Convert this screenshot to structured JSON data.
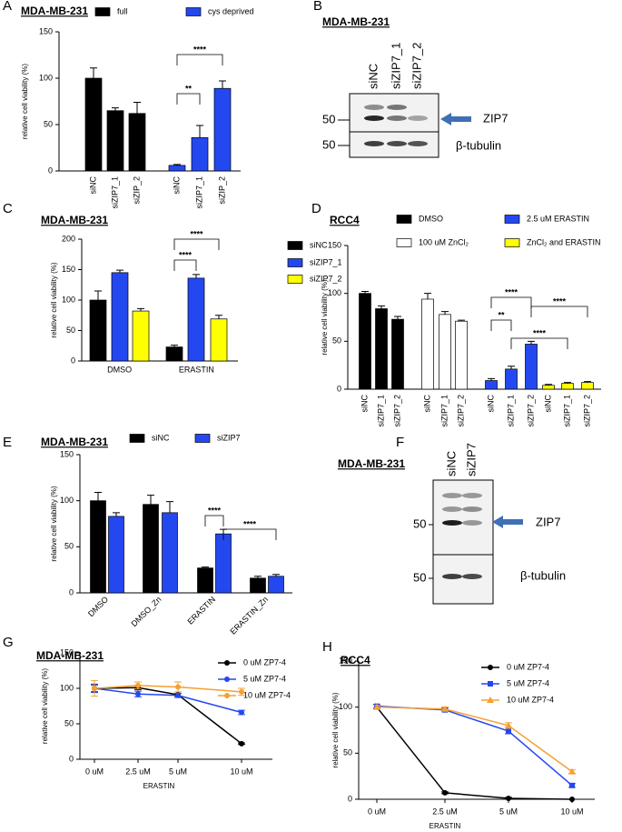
{
  "chart_data": [
    {
      "type": "bar",
      "panel": "A",
      "title": "MDA-MB-231",
      "y_label": "relative cell viability (%)",
      "categories": [
        "siNC",
        "siZIP7_1",
        "siZIP_2",
        "siNC",
        "siZIP7_1",
        "siZIP_2"
      ],
      "series": [
        {
          "name": "full",
          "color": "#000000",
          "values": [
            100,
            65,
            62,
            null,
            null,
            null
          ],
          "errors": [
            11,
            3,
            12,
            null,
            null,
            null
          ]
        },
        {
          "name": "cys deprived",
          "color": "#2448f0",
          "values": [
            null,
            null,
            null,
            6,
            36,
            89
          ],
          "errors": [
            null,
            null,
            null,
            1,
            13,
            8
          ]
        }
      ],
      "ylim": [
        0,
        150
      ],
      "yticks": [
        0,
        50,
        100,
        150
      ],
      "annotations": [
        "**",
        "****"
      ]
    },
    {
      "type": "bar",
      "panel": "C",
      "title": "MDA-MB-231",
      "y_label": "relative cell viability (%)",
      "categories": [
        "DMSO",
        "ERASTIN"
      ],
      "series": [
        {
          "name": "siNC",
          "color": "#000000",
          "values": [
            100,
            23
          ],
          "errors": [
            15,
            3
          ]
        },
        {
          "name": "siZIP7_1",
          "color": "#2448f0",
          "values": [
            145,
            136
          ],
          "errors": [
            4,
            6
          ]
        },
        {
          "name": "siZIP7_2",
          "color": "#ffff00",
          "values": [
            82,
            69
          ],
          "errors": [
            4,
            6
          ]
        }
      ],
      "ylim": [
        0,
        200
      ],
      "yticks": [
        0,
        50,
        100,
        150,
        200
      ],
      "annotations": [
        "****",
        "****"
      ]
    },
    {
      "type": "bar",
      "panel": "D",
      "title": "RCC4",
      "y_label": "relative cell viability (%)",
      "categories": [
        "siNC",
        "siZIP7_1",
        "siZIP7_2",
        "siNC",
        "siZIP7_1",
        "siZIP7_2",
        "siNC",
        "siZIP7_1",
        "siZIP7_2",
        "siNC",
        "siZIP7_1",
        "siZIP7_2"
      ],
      "series": [
        {
          "name": "DMSO",
          "color": "#000000",
          "values": [
            100,
            84,
            73,
            null,
            null,
            null,
            null,
            null,
            null,
            null,
            null,
            null
          ],
          "errors": [
            2,
            3,
            3,
            null,
            null,
            null,
            null,
            null,
            null,
            null,
            null,
            null
          ]
        },
        {
          "name": "100 uM ZnCl₂",
          "color": "#ffffff",
          "values": [
            null,
            null,
            null,
            94,
            78,
            71,
            null,
            null,
            null,
            null,
            null,
            null
          ],
          "errors": [
            null,
            null,
            null,
            6,
            3,
            1,
            null,
            null,
            null,
            null,
            null,
            null
          ]
        },
        {
          "name": "2.5 uM ERASTIN",
          "color": "#2448f0",
          "values": [
            null,
            null,
            null,
            null,
            null,
            null,
            9,
            21,
            47,
            null,
            null,
            null
          ],
          "errors": [
            null,
            null,
            null,
            null,
            null,
            null,
            2,
            3,
            3,
            null,
            null,
            null
          ]
        },
        {
          "name": "ZnCl₂ and ERASTIN",
          "color": "#ffff00",
          "values": [
            null,
            null,
            null,
            null,
            null,
            null,
            null,
            null,
            null,
            4,
            6,
            7
          ],
          "errors": [
            null,
            null,
            null,
            null,
            null,
            null,
            null,
            null,
            null,
            1,
            1,
            1
          ]
        }
      ],
      "ylim": [
        0,
        150
      ],
      "yticks": [
        0,
        50,
        100,
        150
      ],
      "annotations": [
        "****",
        "**",
        "****",
        "****"
      ]
    },
    {
      "type": "bar",
      "panel": "E",
      "title": "MDA-MB-231",
      "y_label": "relative cell viability (%)",
      "categories": [
        "DMSO",
        "DMSO_Zn",
        "ERASTIN",
        "ERASTIN_Zn"
      ],
      "series": [
        {
          "name": "siNC",
          "color": "#000000",
          "values": [
            100,
            96,
            27,
            16
          ],
          "errors": [
            9,
            10,
            1,
            2
          ]
        },
        {
          "name": "siZIP7",
          "color": "#2448f0",
          "values": [
            83,
            87,
            64,
            18
          ],
          "errors": [
            4,
            12,
            5,
            2
          ]
        }
      ],
      "ylim": [
        0,
        150
      ],
      "yticks": [
        0,
        50,
        100,
        150
      ],
      "annotations": [
        "****",
        "****"
      ]
    },
    {
      "type": "line",
      "panel": "G",
      "title": "MDA-MB-231",
      "y_label": "relative cell viability (%)",
      "x_label": "ERASTIN",
      "categories": [
        "0 uM",
        "2.5 uM",
        "5 uM",
        "10 uM"
      ],
      "series": [
        {
          "name": "0 uM ZP7-4",
          "color": "#000000",
          "marker": "circle",
          "values": [
            100,
            101,
            91,
            22
          ],
          "errors": [
            5,
            3,
            2,
            1
          ]
        },
        {
          "name": "5 uM ZP7-4",
          "color": "#2448f0",
          "marker": "circle",
          "values": [
            100,
            92,
            90,
            66
          ],
          "errors": [
            6,
            4,
            3,
            3
          ]
        },
        {
          "name": "10 uM ZP7-4",
          "color": "#f5a030",
          "marker": "circle",
          "values": [
            100,
            104,
            102,
            95
          ],
          "errors": [
            11,
            5,
            7,
            5
          ]
        }
      ],
      "ylim": [
        0,
        150
      ],
      "yticks": [
        0,
        50,
        100,
        150
      ]
    },
    {
      "type": "line",
      "panel": "H",
      "title": "RCC4",
      "y_label": "relative cell viability (%)",
      "x_label": "ERASTIN",
      "categories": [
        "0 uM",
        "2.5 uM",
        "5 uM",
        "10 uM"
      ],
      "series": [
        {
          "name": "0 uM ZP7-4",
          "color": "#000000",
          "marker": "circle",
          "values": [
            100,
            7,
            1,
            0
          ],
          "errors": [
            2,
            1,
            1,
            0
          ]
        },
        {
          "name": "5 uM ZP7-4",
          "color": "#2448f0",
          "marker": "square",
          "values": [
            101,
            97,
            74,
            15
          ],
          "errors": [
            2,
            2,
            3,
            2
          ]
        },
        {
          "name": "10 uM ZP7-4",
          "color": "#f5a030",
          "marker": "triangle",
          "values": [
            100,
            98,
            80,
            30
          ],
          "errors": [
            2,
            2,
            3,
            2
          ]
        }
      ],
      "ylim": [
        0,
        150
      ],
      "yticks": [
        0,
        50,
        100,
        150
      ]
    }
  ],
  "blots": [
    {
      "panel": "B",
      "title": "MDA-MB-231",
      "lanes": [
        "siNC",
        "siZIP7_1",
        "siZIP7_2"
      ],
      "target": "ZIP7",
      "marker": "50",
      "loading": "β-tubulin"
    },
    {
      "panel": "F",
      "title": "MDA-MB-231",
      "lanes": [
        "siNC",
        "siZIP7"
      ],
      "target": "ZIP7",
      "marker": "50",
      "loading": "β-tubulin"
    }
  ]
}
